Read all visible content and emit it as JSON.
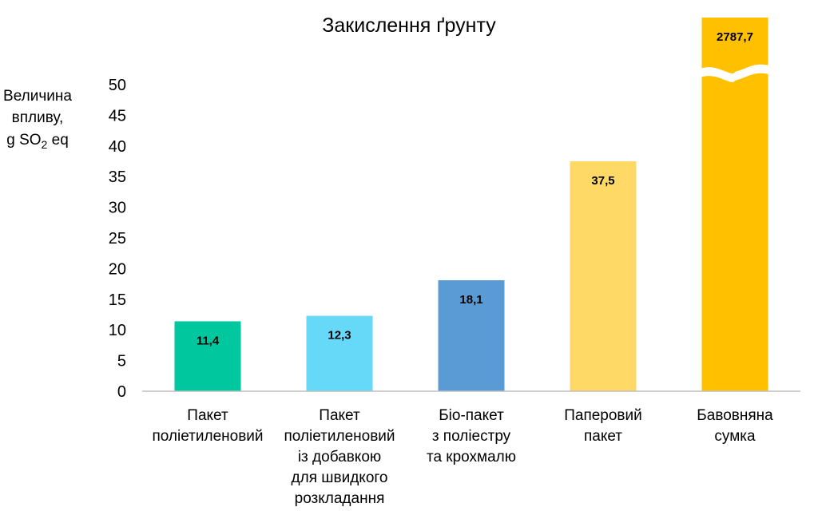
{
  "chart_data": {
    "type": "bar",
    "title": "Закислення ґрунту",
    "ylabel": {
      "line1": "Величина",
      "line2": "впливу,",
      "unit_prefix": "g SO",
      "unit_sub": "2",
      "unit_suffix": " eq"
    },
    "ylim": [
      0,
      50
    ],
    "yticks": [
      "0",
      "5",
      "10",
      "15",
      "20",
      "25",
      "30",
      "35",
      "40",
      "45",
      "50"
    ],
    "categories": [
      [
        "Пакет",
        "поліетиленовий"
      ],
      [
        "Пакет",
        "поліетиленовий",
        "із добавкою",
        "для швидкого",
        "розкладання"
      ],
      [
        "Біо-пакет",
        "з поліестру",
        "та крохмалю"
      ],
      [
        "Паперовий",
        "пакет"
      ],
      [
        "Бавовняна",
        "сумка"
      ]
    ],
    "values": [
      11.4,
      12.3,
      18.1,
      37.5,
      2787.7
    ],
    "value_labels": [
      "11,4",
      "12,3",
      "18,1",
      "37,5",
      "2787,7"
    ],
    "colors": [
      "#00C79E",
      "#66D9F9",
      "#5B9BD5",
      "#FFD966",
      "#FFC000"
    ],
    "axis_break_on_last_bar": true,
    "grid": false,
    "legend": "none"
  }
}
